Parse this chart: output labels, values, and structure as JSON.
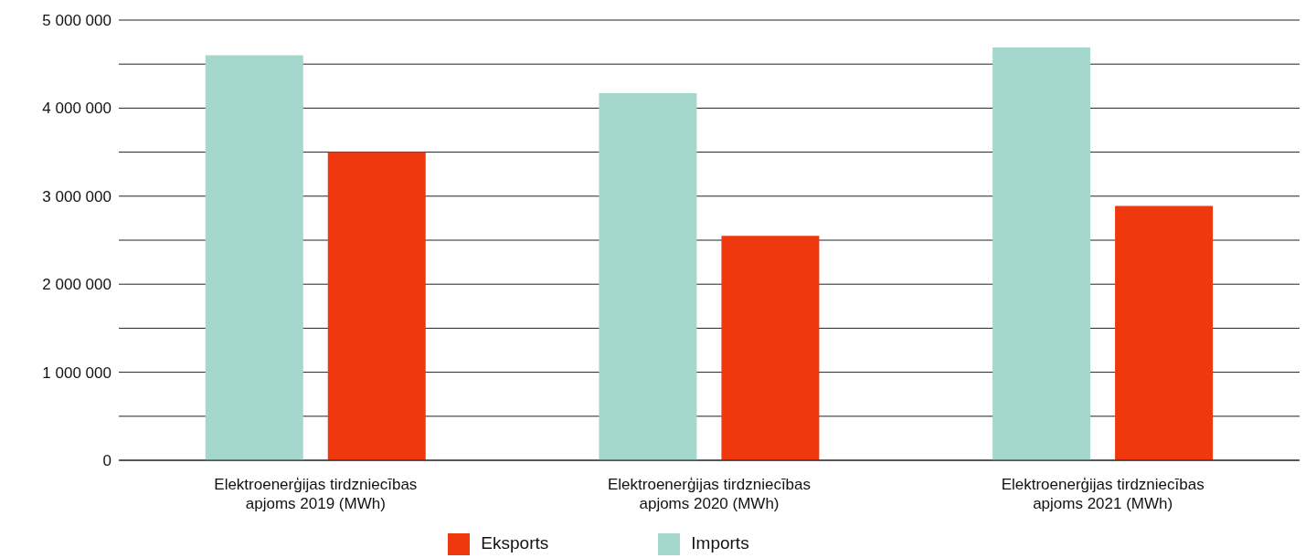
{
  "chart_data": {
    "type": "bar",
    "categories": [
      "Elektroenerģijas tirdzniecības apjoms 2019 (MWh)",
      "Elektroenerģijas tirdzniecības apjoms 2020 (MWh)",
      "Elektroenerģijas tirdzniecības apjoms 2021 (MWh)"
    ],
    "series": [
      {
        "name": "Imports",
        "color": "#a4d8cd",
        "values": [
          4600000,
          4170000,
          4690000
        ]
      },
      {
        "name": "Eksports",
        "color": "#f0380f",
        "values": [
          3500000,
          2550000,
          2890000
        ]
      }
    ],
    "ylim": [
      0,
      5000000
    ],
    "yticks": [
      {
        "value": 0,
        "label": "0"
      },
      {
        "value": 500000,
        "label": null
      },
      {
        "value": 1000000,
        "label": "1 000 000"
      },
      {
        "value": 1500000,
        "label": null
      },
      {
        "value": 2000000,
        "label": "2 000 000"
      },
      {
        "value": 2500000,
        "label": null
      },
      {
        "value": 3000000,
        "label": "3 000 000"
      },
      {
        "value": 3500000,
        "label": null
      },
      {
        "value": 4000000,
        "label": "4 000 000"
      },
      {
        "value": 4500000,
        "label": null
      },
      {
        "value": 5000000,
        "label": "5 000 000"
      }
    ],
    "grid": "y",
    "legend": "bottom"
  }
}
